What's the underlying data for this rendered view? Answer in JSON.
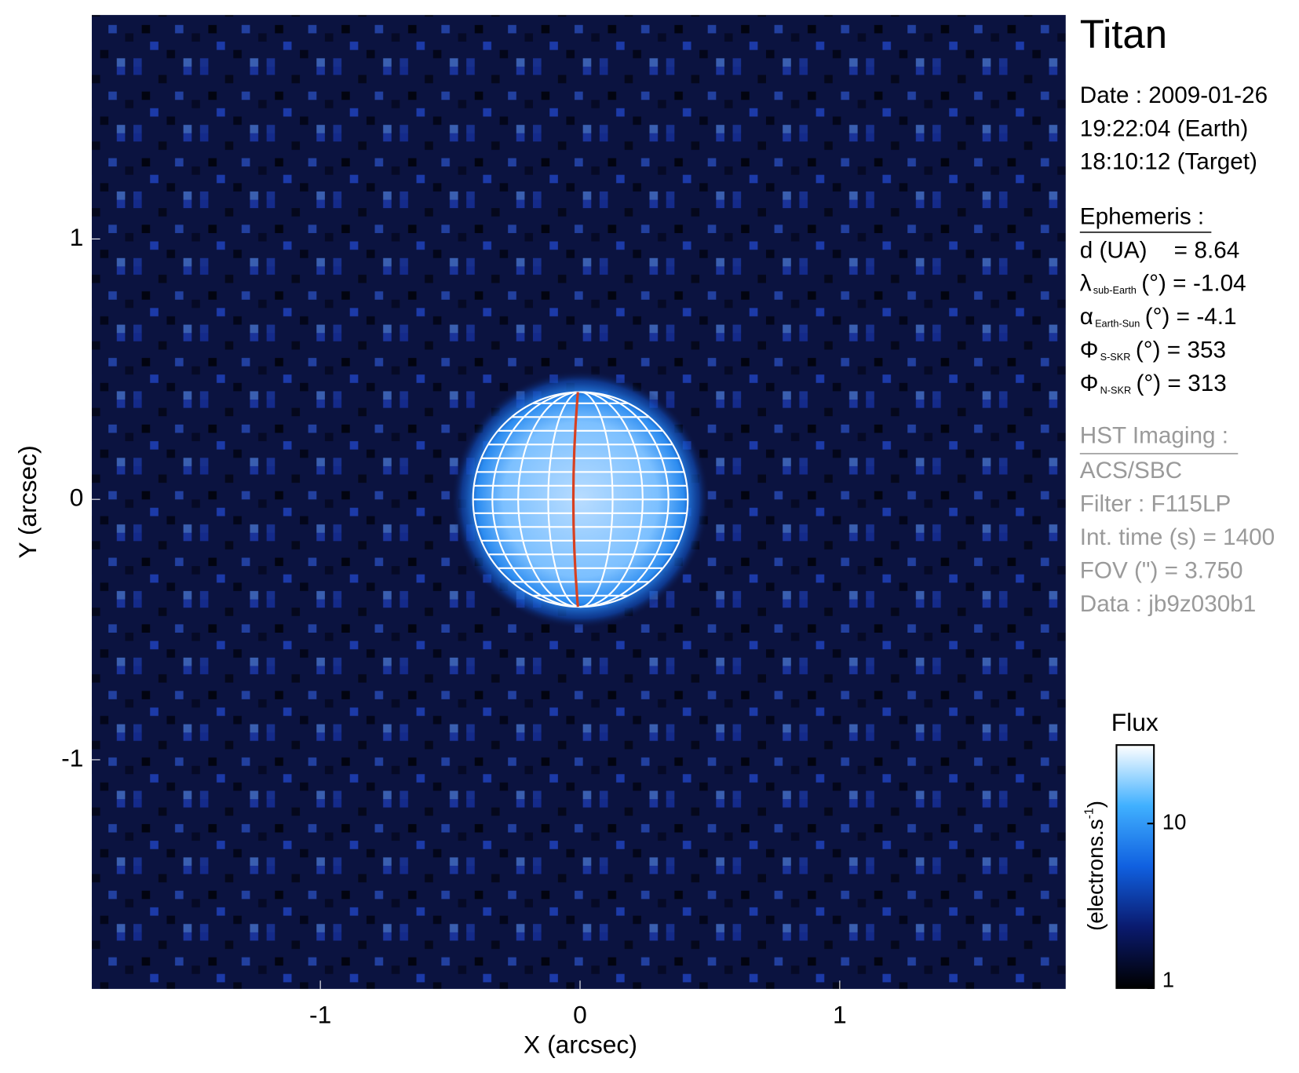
{
  "chart_data": {
    "type": "image",
    "title": "Titan",
    "x_label": "X (arcsec)",
    "y_label": "Y (arcsec)",
    "xlim": [
      -1.88,
      1.87
    ],
    "ylim": [
      -1.88,
      1.86
    ],
    "xticks": [
      -1,
      0,
      1
    ],
    "yticks": [
      -1,
      0,
      1
    ],
    "date_lines": [
      "Date : 2009-01-26",
      "19:22:04 (Earth)",
      "18:10:12 (Target)"
    ],
    "ephemeris": {
      "heading": "Ephemeris :",
      "rows": [
        {
          "label": "d (UA)",
          "unit": "=",
          "value": 8.64
        },
        {
          "label": "λ",
          "subscript": "sub-Earth",
          "unit": "(°) =",
          "value": -1.04
        },
        {
          "label": "α",
          "subscript": "Earth-Sun",
          "unit": "(°) =",
          "value": -4.1
        },
        {
          "label": "Φ",
          "subscript": "S-SKR",
          "unit": "(°)   =",
          "value": 353
        },
        {
          "label": "Φ",
          "subscript": "N-SKR",
          "unit": "(°)   =",
          "value": 313
        }
      ]
    },
    "imaging": {
      "heading": "HST Imaging :",
      "lines": [
        "ACS/SBC",
        "Filter : F115LP",
        "Int. time (s) = 1400",
        "FOV (\") = 3.750",
        "Data : jb9z030b1"
      ]
    },
    "colorbar": {
      "title": "Flux",
      "label": "(electrons.s",
      "label_sup": "-1",
      "label_end": ")",
      "log_scale": true,
      "lim": [
        1,
        30
      ],
      "ticks": [
        1,
        10
      ],
      "colors": [
        "#000000",
        "#0a1a6e",
        "#1060e0",
        "#40b0ff",
        "#ffffff"
      ]
    }
  }
}
